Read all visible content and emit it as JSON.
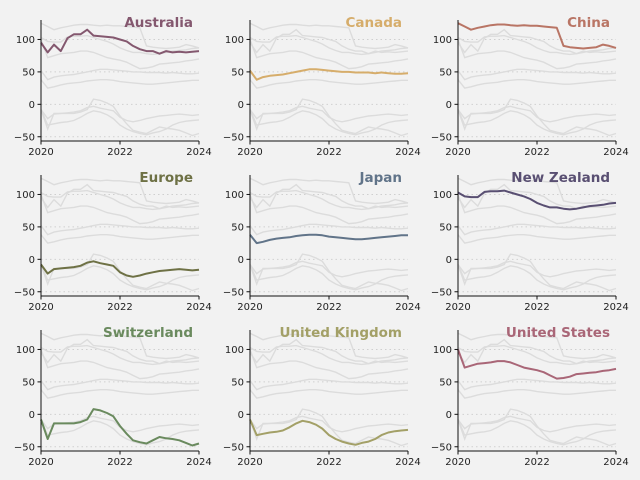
{
  "chart_data": {
    "type": "line",
    "layout": "3x3 small multiples; each panel highlights one series over all others in light grey",
    "x_ticks": [
      "2020",
      "2022",
      "2024"
    ],
    "y_ticks": [
      "100",
      "50",
      "0",
      "−50"
    ],
    "x_range": [
      2020,
      2024
    ],
    "y_range": [
      -55,
      130
    ],
    "grid": "dotted horizontal gridlines at y ticks",
    "x": [
      "2020.00",
      "2020.17",
      "2020.33",
      "2020.50",
      "2020.67",
      "2020.83",
      "2021.00",
      "2021.17",
      "2021.33",
      "2021.50",
      "2021.67",
      "2021.83",
      "2022.00",
      "2022.17",
      "2022.33",
      "2022.50",
      "2022.67",
      "2022.83",
      "2023.00",
      "2023.17",
      "2023.33",
      "2023.50",
      "2023.67",
      "2023.83",
      "2024.00"
    ],
    "series": [
      {
        "name": "Australia",
        "color": "#84586f",
        "values": [
          95,
          80,
          92,
          82,
          102,
          108,
          108,
          115,
          106,
          105,
          104,
          103,
          100,
          97,
          90,
          85,
          82,
          82,
          78,
          82,
          80,
          81,
          80,
          81,
          82
        ]
      },
      {
        "name": "Canada",
        "color": "#d6ad6b",
        "values": [
          52,
          38,
          42,
          44,
          45,
          46,
          48,
          50,
          52,
          54,
          54,
          53,
          52,
          51,
          50,
          50,
          49,
          49,
          49,
          48,
          49,
          48,
          47,
          47,
          48
        ]
      },
      {
        "name": "China",
        "color": "#b97565",
        "values": [
          125,
          120,
          115,
          118,
          120,
          122,
          123,
          123,
          122,
          121,
          122,
          121,
          121,
          120,
          119,
          118,
          90,
          88,
          87,
          86,
          87,
          88,
          92,
          90,
          87
        ]
      },
      {
        "name": "Europe",
        "color": "#6e7145",
        "values": [
          -8,
          -22,
          -15,
          -14,
          -13,
          -12,
          -10,
          -5,
          -3,
          -6,
          -8,
          -10,
          -20,
          -25,
          -27,
          -25,
          -22,
          -20,
          -18,
          -17,
          -16,
          -15,
          -16,
          -17,
          -16
        ]
      },
      {
        "name": "Japan",
        "color": "#617489",
        "values": [
          38,
          25,
          27,
          30,
          32,
          33,
          34,
          36,
          37,
          38,
          38,
          37,
          35,
          34,
          33,
          32,
          31,
          31,
          32,
          33,
          34,
          35,
          36,
          37,
          37
        ]
      },
      {
        "name": "New Zealand",
        "color": "#594f72",
        "values": [
          103,
          97,
          96,
          96,
          104,
          105,
          105,
          106,
          103,
          100,
          97,
          93,
          87,
          83,
          80,
          80,
          78,
          77,
          78,
          80,
          82,
          83,
          84,
          86,
          87
        ]
      },
      {
        "name": "Switzerland",
        "color": "#6a8a5e",
        "values": [
          -8,
          -38,
          -14,
          -14,
          -14,
          -14,
          -12,
          -8,
          8,
          6,
          2,
          -3,
          -18,
          -30,
          -40,
          -43,
          -45,
          -40,
          -35,
          -37,
          -38,
          -40,
          -44,
          -48,
          -45
        ]
      },
      {
        "name": "United Kingdom",
        "color": "#a3a067",
        "values": [
          -8,
          -32,
          -30,
          -28,
          -27,
          -25,
          -20,
          -14,
          -10,
          -12,
          -16,
          -22,
          -32,
          -38,
          -42,
          -45,
          -47,
          -44,
          -42,
          -38,
          -32,
          -28,
          -26,
          -25,
          -24
        ]
      },
      {
        "name": "United States",
        "color": "#a96677",
        "values": [
          100,
          72,
          75,
          78,
          79,
          80,
          82,
          82,
          80,
          76,
          72,
          70,
          68,
          65,
          60,
          55,
          56,
          58,
          62,
          63,
          64,
          65,
          67,
          68,
          70
        ]
      }
    ]
  }
}
